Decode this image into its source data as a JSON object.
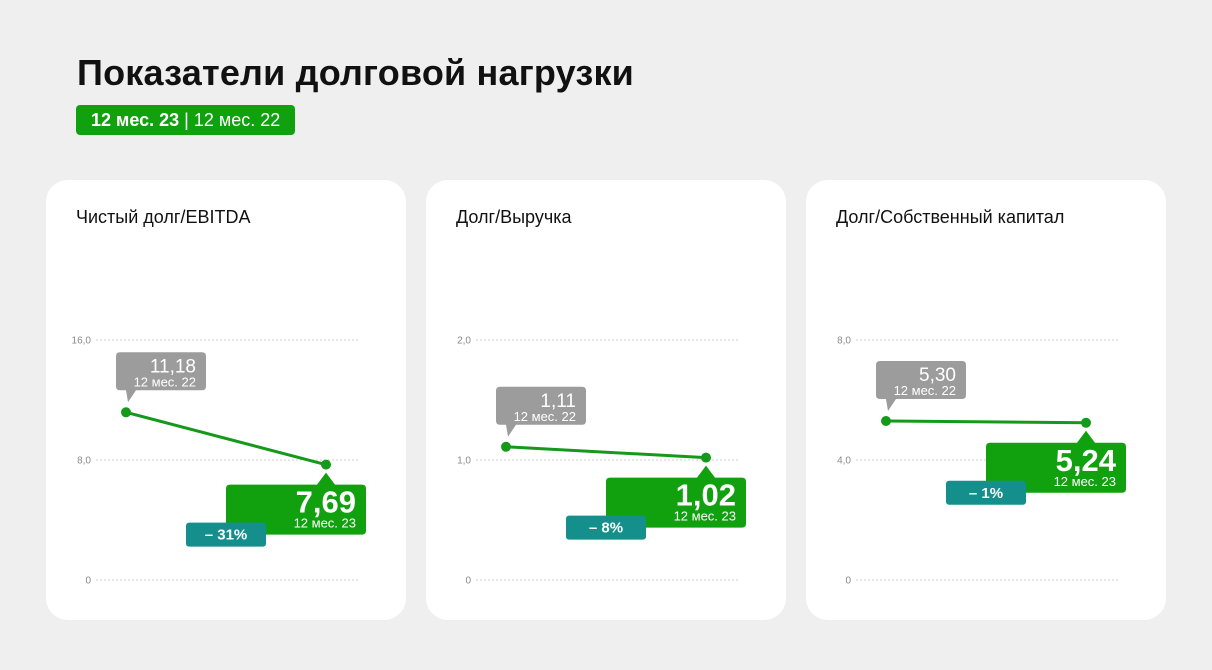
{
  "header": {
    "title": "Показатели долговой нагрузки",
    "period_current": "12 мес. 23",
    "period_separator": " | ",
    "period_previous": "12 мес. 22"
  },
  "colors": {
    "accent_green": "#11a10f",
    "line_green": "#15991a",
    "previous_gray": "#9c9c9c",
    "delta_teal": "#148f8c",
    "card_bg": "#ffffff",
    "page_bg": "#efefef"
  },
  "chart_data": [
    {
      "type": "line",
      "title": "Чистый долг/EBITDA",
      "x": [
        "12 мес. 22",
        "12 мес. 23"
      ],
      "values": [
        11.18,
        7.69
      ],
      "value_labels": [
        "11,18",
        "7,69"
      ],
      "period_labels": [
        "12 мес. 22",
        "12 мес. 23"
      ],
      "yticks": [
        0,
        8,
        16
      ],
      "ytick_labels": [
        "0",
        "8,0",
        "16,0"
      ],
      "ylim": [
        0,
        16
      ],
      "delta_label": "– 31%",
      "grid": true
    },
    {
      "type": "line",
      "title": "Долг/Выручка",
      "x": [
        "12 мес. 22",
        "12 мес. 23"
      ],
      "values": [
        1.11,
        1.02
      ],
      "value_labels": [
        "1,11",
        "1,02"
      ],
      "period_labels": [
        "12 мес. 22",
        "12 мес. 23"
      ],
      "yticks": [
        0,
        1,
        2
      ],
      "ytick_labels": [
        "0",
        "1,0",
        "2,0"
      ],
      "ylim": [
        0,
        2
      ],
      "delta_label": "– 8%",
      "grid": true
    },
    {
      "type": "line",
      "title": "Долг/Собственный капитал",
      "x": [
        "12 мес. 22",
        "12 мес. 23"
      ],
      "values": [
        5.3,
        5.24
      ],
      "value_labels": [
        "5,30",
        "5,24"
      ],
      "period_labels": [
        "12 мес. 22",
        "12 мес. 23"
      ],
      "yticks": [
        0,
        4,
        8
      ],
      "ytick_labels": [
        "0",
        "4,0",
        "8,0"
      ],
      "ylim": [
        0,
        8
      ],
      "delta_label": "– 1%",
      "grid": true
    }
  ]
}
